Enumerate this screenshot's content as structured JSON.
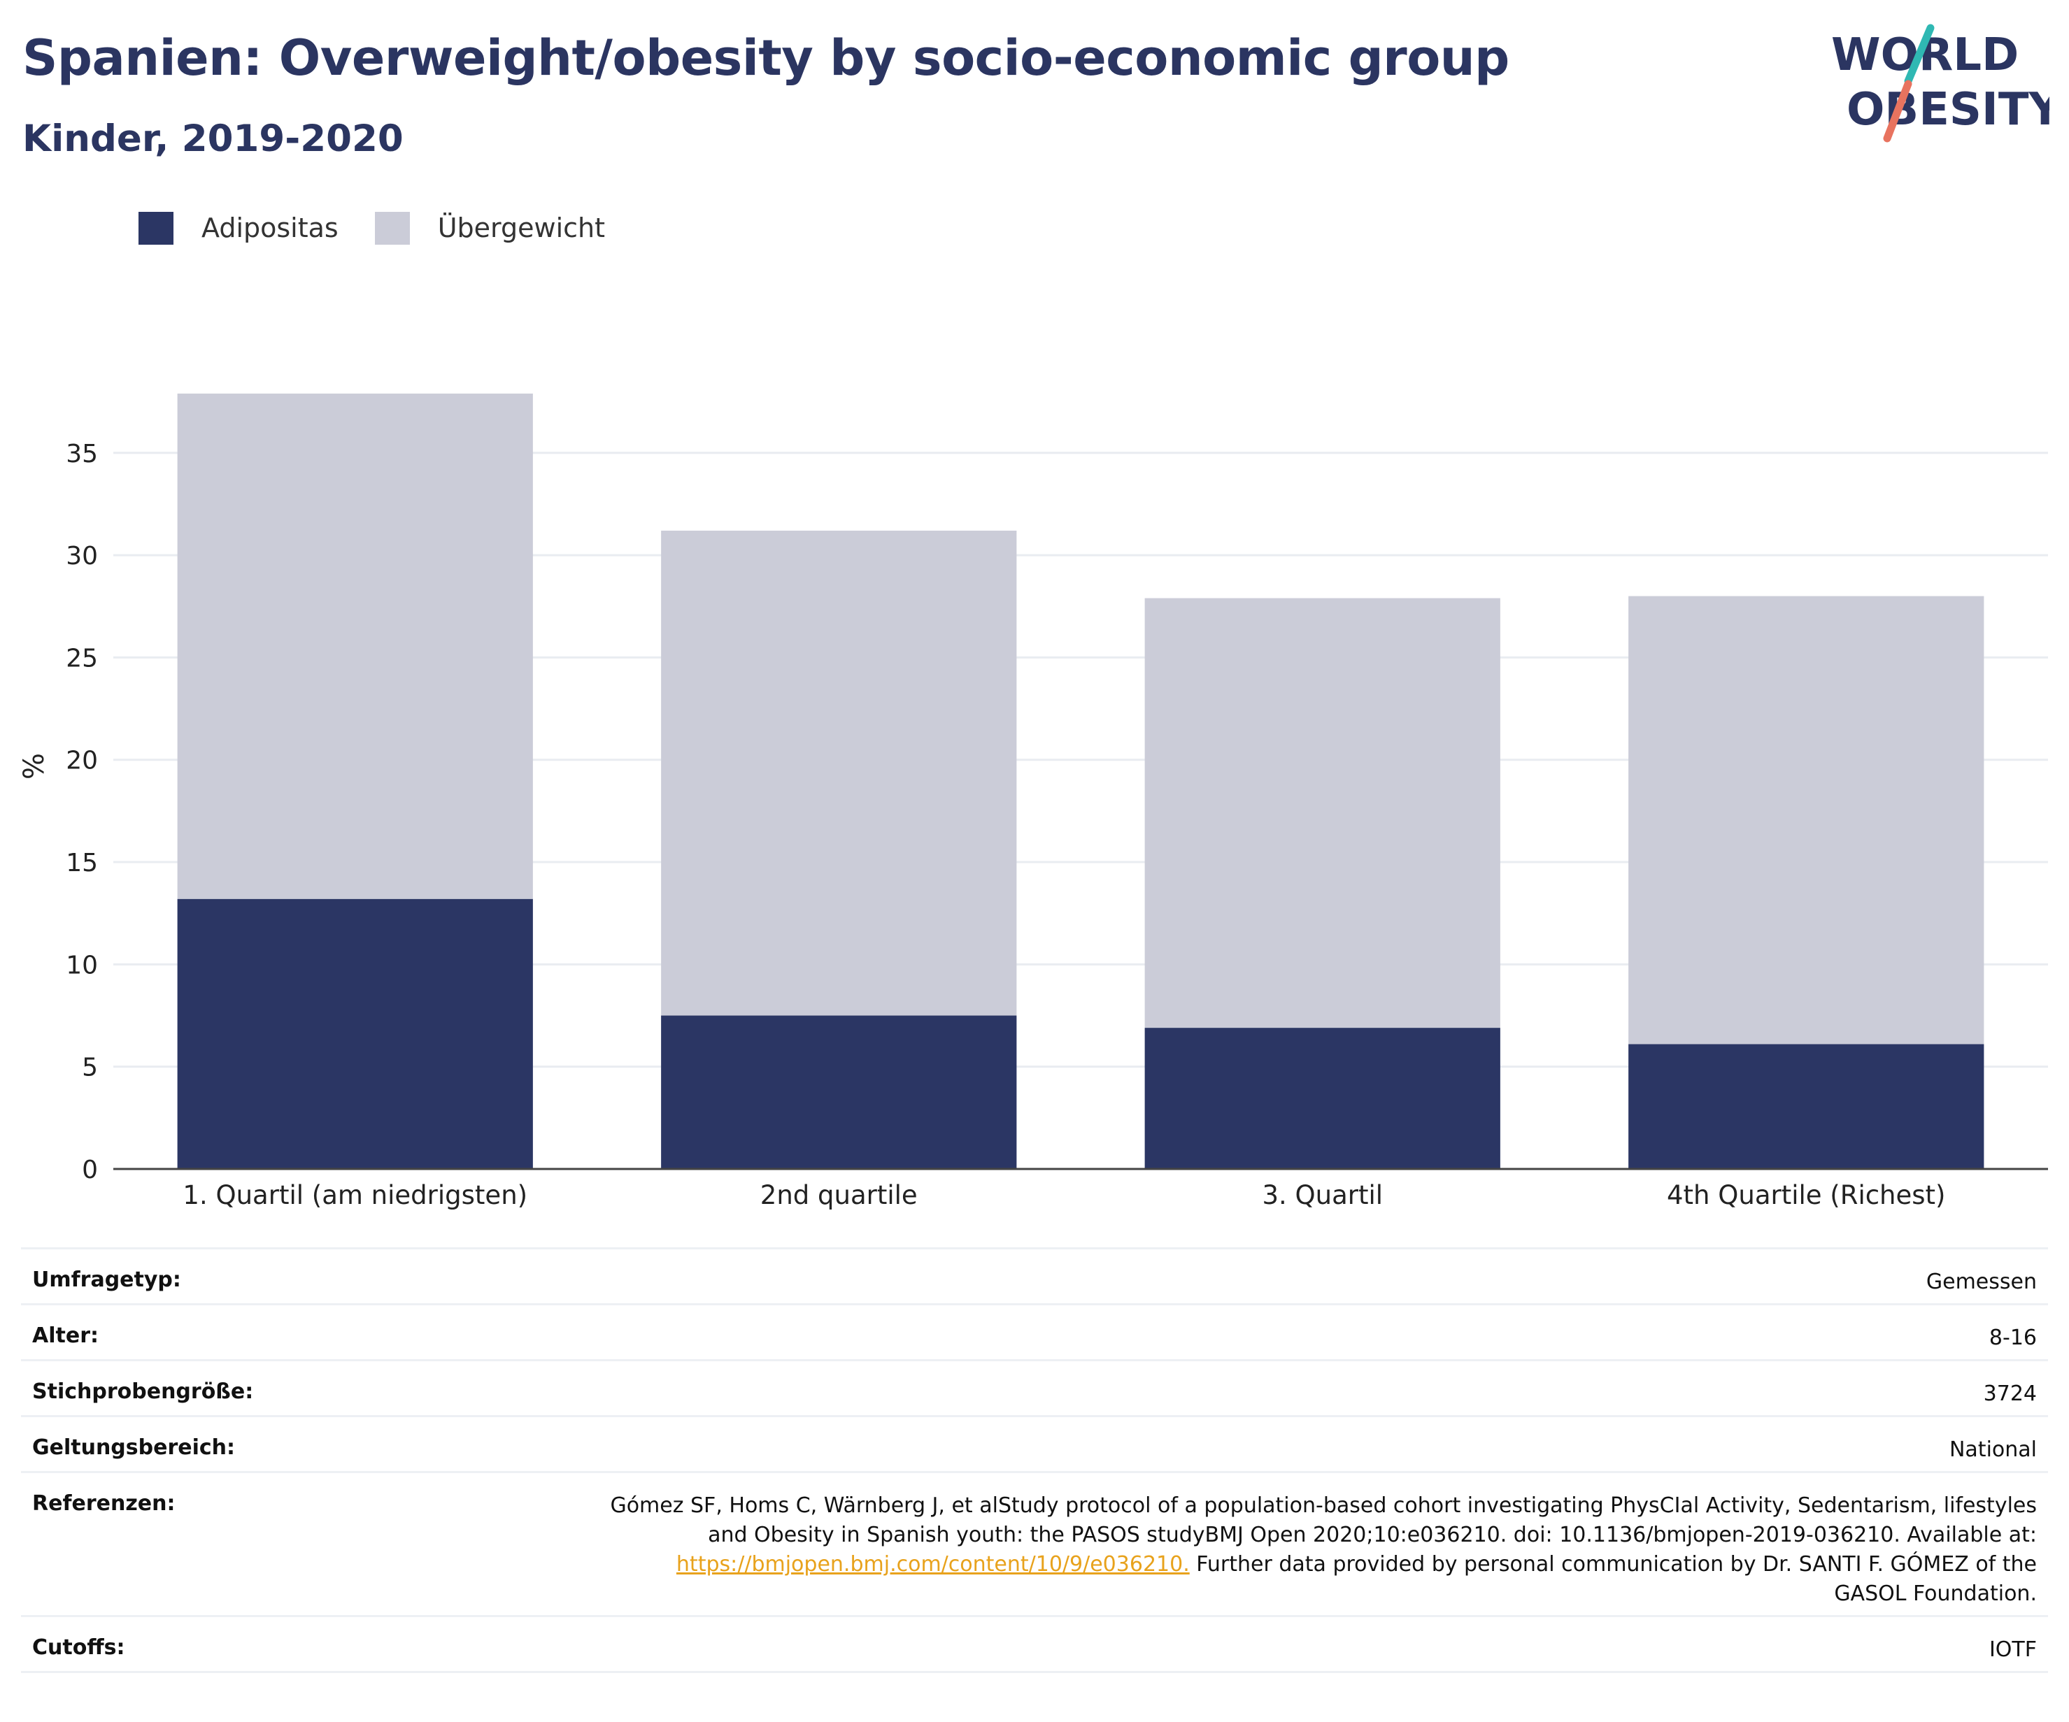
{
  "header": {
    "title": "Spanien: Overweight/obesity by socio-economic group",
    "subtitle": "Kinder, 2019-2020",
    "logo": {
      "line1": "WORLD",
      "line2": "OBESITY"
    }
  },
  "colors": {
    "adipositas": "#2b3664",
    "uebergewicht": "#cbccd8",
    "title": "#2b3561",
    "logo_teal": "#2fb8b3",
    "logo_coral": "#e8735f",
    "link": "#e8a21c"
  },
  "chart_data": {
    "type": "bar",
    "stacked": true,
    "categories": [
      "1. Quartil (am niedrigsten)",
      "2nd quartile",
      "3. Quartil",
      "4th Quartile (Richest)"
    ],
    "series": [
      {
        "name": "Adipositas",
        "values": [
          13.2,
          7.5,
          6.9,
          6.1
        ]
      },
      {
        "name": "Übergewicht",
        "values": [
          24.7,
          23.7,
          21.0,
          21.9
        ]
      }
    ],
    "ylabel": "%",
    "xlabel": "",
    "ylim": [
      0,
      38
    ],
    "yticks": [
      0,
      5,
      10,
      15,
      20,
      25,
      30,
      35
    ],
    "grid": true,
    "legend_position": "top-left"
  },
  "info": {
    "survey_type": {
      "label": "Umfragetyp:",
      "value": "Gemessen"
    },
    "age": {
      "label": "Alter:",
      "value": "8-16"
    },
    "sample_size": {
      "label": "Stichprobengröße:",
      "value": "3724"
    },
    "scope": {
      "label": "Geltungsbereich:",
      "value": "National"
    },
    "references": {
      "label": "Referenzen:",
      "line1": "Gómez SF, Homs C, Wärnberg J, et alStudy protocol of a population-based cohort investigating PhysCIal Activity, Sedentarism, lifestyles",
      "line2": "and Obesity in Spanish youth: the PASOS studyBMJ Open 2020;10:e036210. doi: 10.1136/bmjopen-2019-036210. Available at:",
      "link": "https://bmjopen.bmj.com/content/10/9/e036210.",
      "line3_rest": " Further data provided by personal communication by Dr. SANTI F. GÓMEZ of the",
      "line4": "GASOL Foundation."
    },
    "cutoffs": {
      "label": "Cutoffs:",
      "value": "IOTF"
    }
  }
}
